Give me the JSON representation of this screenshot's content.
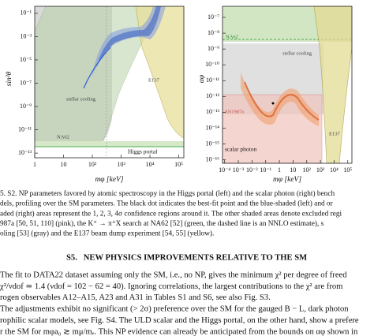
{
  "figure": {
    "panels": [
      {
        "xlabel": "mφ [keV]",
        "ylabel": "sin²θ",
        "xscale": "log",
        "yscale": "log",
        "xlim": [
          1,
          150000
        ],
        "ylim": [
          4e-14,
          0.4
        ],
        "xticks": [
          1,
          10,
          {
            "value": 100,
            "label": "10²"
          },
          {
            "value": 1000,
            "label": "10³"
          },
          {
            "value": 10000,
            "label": "10⁴"
          },
          {
            "value": 100000,
            "label": "10⁵"
          }
        ],
        "yticks": [
          {
            "value": 0.1,
            "label": "10⁻¹"
          },
          {
            "value": 0.001,
            "label": "10⁻³"
          },
          {
            "value": 1e-05,
            "label": "10⁻⁵"
          },
          {
            "value": 1e-07,
            "label": "10⁻⁷"
          },
          {
            "value": 1e-09,
            "label": "10⁻⁹"
          },
          {
            "value": 1e-11,
            "label": "10⁻¹¹"
          },
          {
            "value": 1e-13,
            "label": "10⁻¹³"
          }
        ],
        "labels": [
          "stellar cooling",
          "NA62",
          "E137",
          "Higgs portal"
        ]
      },
      {
        "xlabel": "mφ [keV]",
        "ylabel": "αφ",
        "xscale": "log",
        "yscale": "log",
        "xlim": [
          7e-05,
          200000
        ],
        "ylim": [
          6e-17,
          5e-07
        ],
        "xticks": [
          {
            "value": 0.0001,
            "label": "10⁻⁴"
          },
          {
            "value": 0.001,
            "label": "10⁻³"
          },
          {
            "value": 0.01,
            "label": "10⁻²"
          },
          {
            "value": 0.1,
            "label": "10⁻¹"
          },
          1,
          10,
          {
            "value": 100,
            "label": "10²"
          },
          {
            "value": 1000,
            "label": "10³"
          },
          {
            "value": 10000,
            "label": "10⁴"
          },
          {
            "value": 100000,
            "label": "10⁵"
          }
        ],
        "yticks": [
          {
            "value": 1e-07,
            "label": "10⁻⁷"
          },
          {
            "value": 1e-08,
            "label": "10⁻⁸"
          },
          {
            "value": 1e-09,
            "label": "10⁻⁹"
          },
          {
            "value": 1e-10,
            "label": "10⁻¹⁰"
          },
          {
            "value": 1e-11,
            "label": "10⁻¹¹"
          },
          {
            "value": 1e-12,
            "label": "10⁻¹²"
          },
          {
            "value": 1e-13,
            "label": "10⁻¹³"
          },
          {
            "value": 1e-14,
            "label": "10⁻¹⁴"
          },
          {
            "value": 1e-15,
            "label": "10⁻¹⁵"
          },
          {
            "value": 1e-16,
            "label": "10⁻¹⁶"
          }
        ],
        "labels": [
          "NA62",
          "stellar cooling",
          "SN1987a",
          "scalar photon",
          "E137"
        ]
      }
    ],
    "caption": [
      "5. S2. NP parameters favored by atomic spectroscopy in the Higgs portal (left) and the scalar photon (right) bench",
      "dels, profiling over the SM parameters. The black dot indicates the best-fit point and the blue-shaded (left) and or",
      "aded (right) areas represent the 1, 2, 3, 4σ confidence regions around it. The other shaded areas denote excluded regi",
      "987a [50, 51, 110] (pink), the K⁺ → π⁺X search at NA62 [52] (green, the dashed line is an NNLO estimate), s",
      "oling [53] (gray) and the E137 beam dump experiment [54, 55] (yellow)."
    ]
  },
  "section": {
    "heading": "S5.   NEW PHYSICS IMPROVEMENTS RELATIVE TO THE SM",
    "lines": [
      "The fit to DATA22 dataset assuming only the SM, i.e., no NP, gives the minimum χ² per degree of freed",
      "χ²/νdof ≃ 1.4 (νdof = 102 − 62 = 40). Ignoring correlations, the largest contributions to the χ² are from",
      "rogen observables A12–A15, A23 and A31 in Tables S1 and S6, see also Fig. S3.",
      "The adjustments exhibit no significant (> 2σ) preference over the SM for the gauged B − L, dark photon",
      "rophilic scalar models, see Fig. S4. The ULD scalar and the Higgs portal, on the other hand, show a prefere",
      "r the SM for mφa₀ ≳ mμ/mₑ. This NP evidence can already be anticipated from the bounds on αφ shown in"
    ]
  }
}
